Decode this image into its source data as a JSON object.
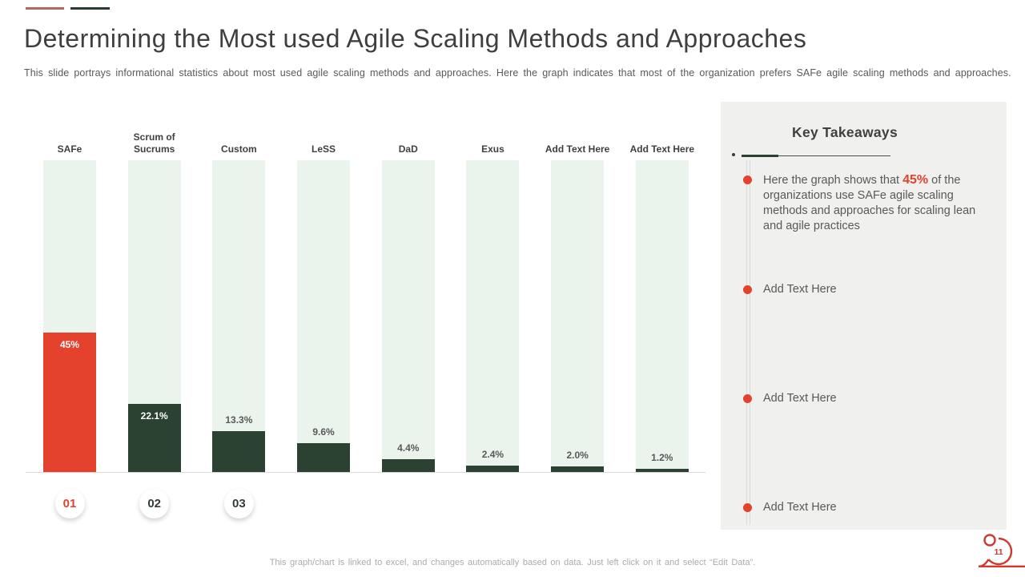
{
  "slide": {
    "title": "Determining the Most used Agile Scaling Methods and Approaches",
    "subtitle": "This slide portrays informational statistics about most used agile scaling methods and approaches. Here the graph indicates that most of the organization prefers SAFe agile scaling methods and approaches.",
    "footer_note": "This graph/chart is linked to excel, and changes automatically based on data. Just left click on it and select “Edit Data”.",
    "page_number": "11"
  },
  "colors": {
    "accent_red": "#E4422C",
    "dark_green": "#2B4233",
    "track_green": "#EAF3EC",
    "panel_gray": "#F0F0EF",
    "dash_red": "#B2695C",
    "dash_green": "#2A3C30",
    "value_label_gray": "#595959",
    "step_number_dark": "#333B36"
  },
  "chart_data": {
    "type": "bar",
    "title": "",
    "unit": "percent",
    "ylim": [
      0,
      100
    ],
    "grid": false,
    "legend": false,
    "bars": [
      {
        "category": "SAFe",
        "value": 45,
        "value_label": "45%",
        "highlighted": true,
        "label_inside": true
      },
      {
        "category": "Scrum of Sucrums",
        "category_display": "Scrum of\nSucrums",
        "value": 22.1,
        "value_label": "22.1%",
        "highlighted": false,
        "label_inside": true
      },
      {
        "category": "Custom",
        "value": 13.3,
        "value_label": "13.3%",
        "highlighted": false,
        "label_inside": false
      },
      {
        "category": "LeSS",
        "value": 9.6,
        "value_label": "9.6%",
        "highlighted": false,
        "label_inside": false
      },
      {
        "category": "DaD",
        "value": 4.4,
        "value_label": "4.4%",
        "highlighted": false,
        "label_inside": false
      },
      {
        "category": "Exus",
        "value": 2.4,
        "value_label": "2.4%",
        "highlighted": false,
        "label_inside": false
      },
      {
        "category": "Add Text Here",
        "value": 2.0,
        "value_label": "2.0%",
        "highlighted": false,
        "label_inside": false
      },
      {
        "category": "Add Text Here",
        "value": 1.2,
        "value_label": "1.2%",
        "highlighted": false,
        "label_inside": false
      }
    ]
  },
  "steps": [
    {
      "label": "01",
      "accent": true
    },
    {
      "label": "02",
      "accent": false
    },
    {
      "label": "03",
      "accent": false
    }
  ],
  "takeaways": {
    "title": "Key Takeaways",
    "items": [
      {
        "prefix": "Here the graph shows that ",
        "highlight": "45%",
        "suffix": " of the organizations use SAFe agile scaling methods and approaches for scaling lean and agile practices"
      },
      {
        "text": "Add Text Here"
      },
      {
        "text": "Add Text Here"
      },
      {
        "text": "Add Text Here"
      }
    ]
  }
}
